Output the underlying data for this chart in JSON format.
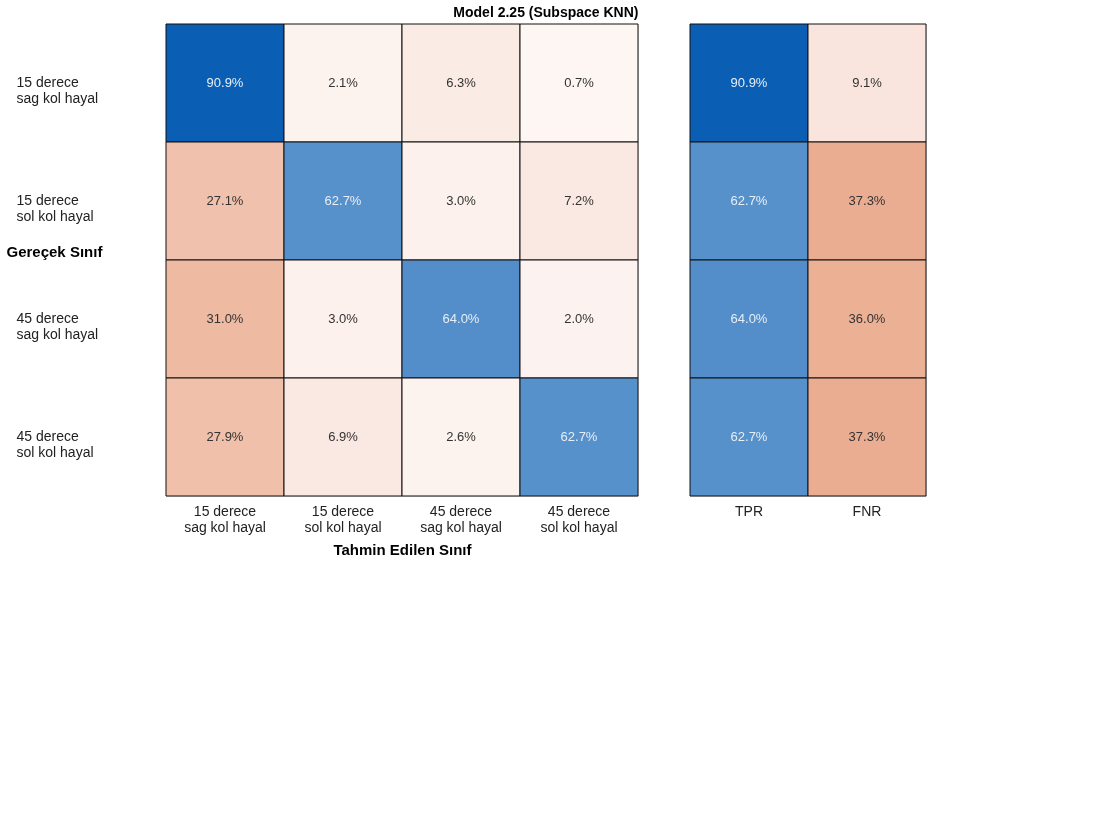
{
  "chart_data": [
    {
      "type": "heatmap",
      "title": "Model 2.25 (Subspace KNN)",
      "xlabel": "Tahmin Edilen Sınıf",
      "ylabel": "Gereçek Sınıf",
      "categories": [
        "15 derece\nsag kol hayal",
        "15 derece\nsol kol hayal",
        "45 derece\nsag kol hayal",
        "45 derece\nsol kol hayal"
      ],
      "y_categories": [
        "15 derece\nsag kol hayal",
        "15 derece\nsol kol hayal",
        "45 derece\nsag kol hayal",
        "45 derece\nsol kol hayal"
      ],
      "cells": [
        [
          90.9,
          2.1,
          6.3,
          0.7
        ],
        [
          27.1,
          62.7,
          3.0,
          7.2
        ],
        [
          31.0,
          3.0,
          64.0,
          2.0
        ],
        [
          27.9,
          6.9,
          2.6,
          62.7
        ]
      ],
      "cell_labels": [
        [
          "90.9%",
          "2.1%",
          "6.3%",
          "0.7%"
        ],
        [
          "27.1%",
          "62.7%",
          "3.0%",
          "7.2%"
        ],
        [
          "31.0%",
          "3.0%",
          "64.0%",
          "2.0%"
        ],
        [
          "27.9%",
          "6.9%",
          "2.6%",
          "62.7%"
        ]
      ]
    },
    {
      "type": "heatmap",
      "categories": [
        "TPR",
        "FNR"
      ],
      "y_categories": [
        null,
        null,
        null,
        null
      ],
      "tick_labels": "x",
      "cells": [
        [
          90.9,
          9.1
        ],
        [
          62.7,
          37.3
        ],
        [
          64.0,
          36.0
        ],
        [
          62.7,
          37.3
        ]
      ],
      "cell_labels": [
        [
          "90.9%",
          "9.1%"
        ],
        [
          "62.7%",
          "37.3%"
        ],
        [
          "64.0%",
          "36.0%"
        ],
        [
          "62.7%",
          "37.3%"
        ]
      ]
    }
  ]
}
